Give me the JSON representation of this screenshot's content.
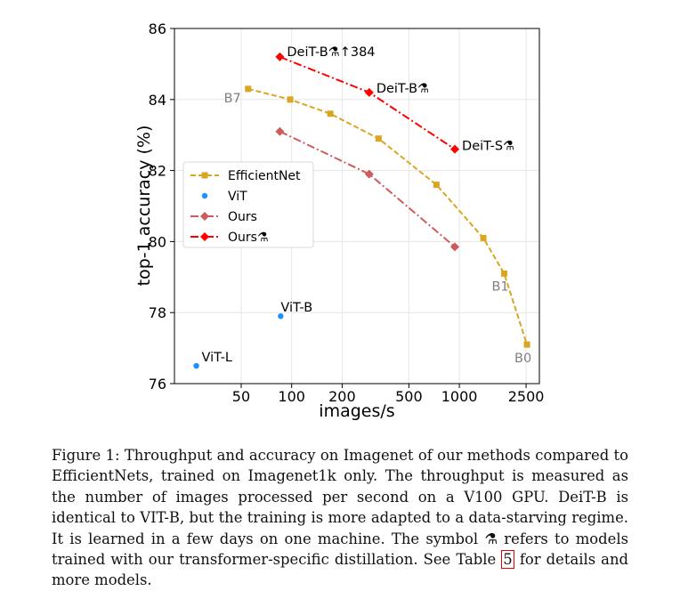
{
  "chart_data": {
    "type": "line",
    "xscale": "log",
    "xlabel": "images/s",
    "ylabel": "top-1 accuracy (%)",
    "xlim": [
      20,
      3000
    ],
    "ylim": [
      76,
      86
    ],
    "xticks": [
      50,
      100,
      200,
      500,
      1000,
      2500
    ],
    "yticks": [
      76,
      78,
      80,
      82,
      84,
      86
    ],
    "grid": true,
    "legend_position": "center-left",
    "series": [
      {
        "name": "EfficientNet",
        "color": "#daa520",
        "marker": "square",
        "linestyle": "dashed",
        "x": [
          55,
          98,
          170,
          330,
          730,
          1390,
          1850,
          2530
        ],
        "y": [
          84.3,
          84.0,
          83.6,
          82.9,
          81.6,
          80.1,
          79.1,
          77.1
        ],
        "point_labels": [
          "B7",
          "",
          "",
          "",
          "",
          "",
          "B1",
          "B0"
        ]
      },
      {
        "name": "ViT",
        "color": "#1e90ff",
        "marker": "circle",
        "linestyle": "none",
        "x": [
          27,
          86
        ],
        "y": [
          76.5,
          77.9
        ],
        "point_labels": [
          "ViT-L",
          "ViT-B"
        ]
      },
      {
        "name": "Ours",
        "color": "#cd5c5c",
        "marker": "diamond",
        "linestyle": "dashdot",
        "x": [
          85,
          290,
          940
        ],
        "y": [
          83.1,
          81.9,
          79.85
        ],
        "point_labels": [
          "",
          "",
          ""
        ]
      },
      {
        "name": "Ours⚗",
        "color": "#ff0000",
        "marker": "diamond",
        "linestyle": "dashdot",
        "x": [
          85,
          290,
          940
        ],
        "y": [
          85.2,
          84.2,
          82.6
        ],
        "point_labels": [
          "DeiT-B⚗↑384",
          "DeiT-B⚗",
          "DeiT-S⚗"
        ]
      }
    ]
  },
  "caption": {
    "before_ref": "Figure 1: Throughput and accuracy on Imagenet of our methods compared to EfficientNets, trained on Imagenet1k only. The throughput is measured as the number of images processed per second on a V100 GPU. DeiT-B is identical to VIT-B, but the training is more adapted to a data-starving regime. It is learned in a few days on one machine. The symbol ⚗ refers to models trained with our transformer-specific distillation. See Table ",
    "ref": "5",
    "after_ref": " for details and more models."
  }
}
